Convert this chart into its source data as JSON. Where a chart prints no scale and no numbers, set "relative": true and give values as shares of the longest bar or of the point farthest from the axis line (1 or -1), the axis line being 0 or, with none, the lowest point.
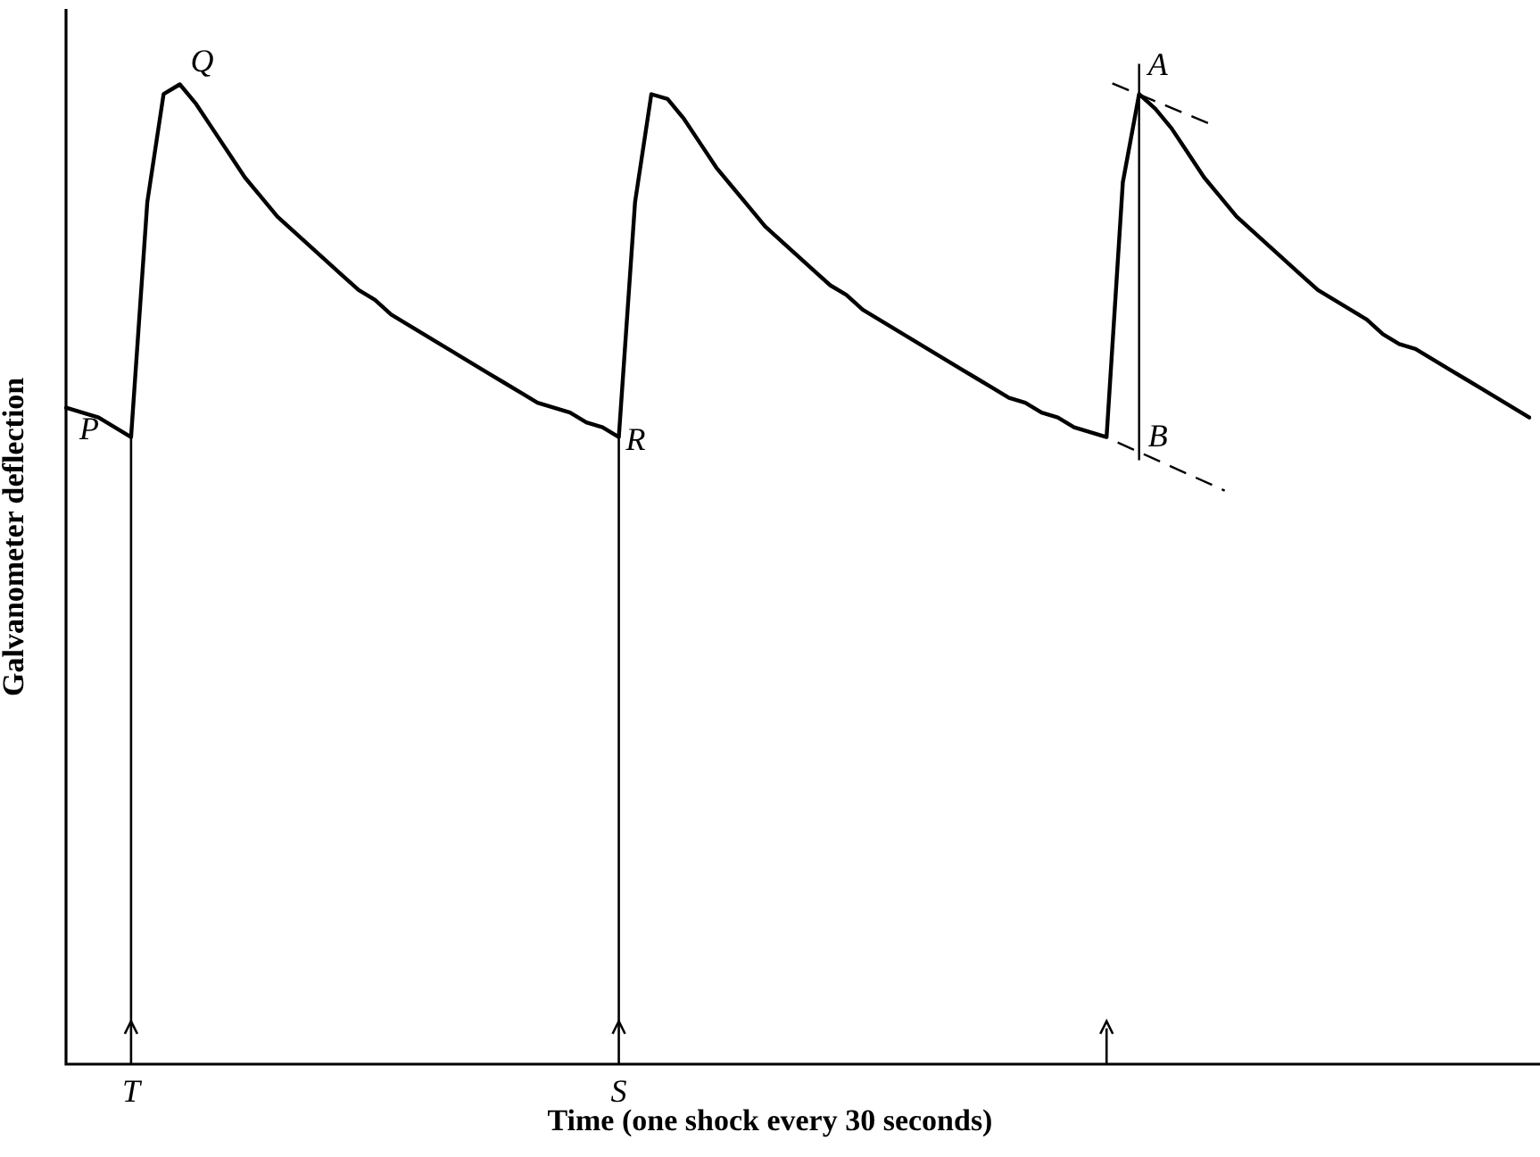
{
  "chart_data": {
    "type": "line",
    "relative": true,
    "xlabel": "Time (one shock every 30 seconds)",
    "ylabel": "Galvanometer deflection",
    "categories": [
      null,
      null,
      null,
      null,
      null,
      null,
      null,
      null,
      null,
      null,
      null,
      null,
      null,
      null,
      null,
      null,
      null,
      null,
      null,
      null,
      null,
      null,
      null,
      null,
      null,
      null,
      null,
      null,
      null,
      null,
      null,
      null,
      null,
      null,
      null,
      null,
      null,
      null,
      null,
      null,
      null,
      null,
      null,
      null,
      null,
      null,
      null,
      null,
      null,
      null,
      null,
      null,
      null,
      null,
      null,
      null,
      null,
      null,
      null,
      null,
      null,
      null,
      null,
      null,
      null,
      null,
      null,
      null,
      null,
      null,
      null,
      null,
      null,
      null,
      null,
      null,
      null,
      null,
      null,
      null,
      null,
      null,
      null,
      null,
      null,
      null,
      null,
      null,
      null,
      null,
      null
    ],
    "series": [
      {
        "color": "#000000",
        "values": [
          0.67,
          0.665,
          0.66,
          0.65,
          0.64,
          0.88,
          0.99,
          1.0,
          0.98,
          0.955,
          0.93,
          0.905,
          0.885,
          0.865,
          0.85,
          0.835,
          0.82,
          0.805,
          0.79,
          0.78,
          0.765,
          0.755,
          0.745,
          0.735,
          0.725,
          0.715,
          0.705,
          0.695,
          0.685,
          0.675,
          0.67,
          0.665,
          0.655,
          0.65,
          0.64,
          0.88,
          0.99,
          0.985,
          0.965,
          0.94,
          0.915,
          0.895,
          0.875,
          0.855,
          0.84,
          0.825,
          0.81,
          0.795,
          0.785,
          0.77,
          0.76,
          0.75,
          0.74,
          0.73,
          0.72,
          0.71,
          0.7,
          0.69,
          0.68,
          0.675,
          0.665,
          0.66,
          0.65,
          0.645,
          0.64,
          0.9,
          0.99,
          0.975,
          0.955,
          0.93,
          0.905,
          0.885,
          0.865,
          0.85,
          0.835,
          0.82,
          0.805,
          0.79,
          0.78,
          0.77,
          0.76,
          0.745,
          0.735,
          0.73,
          0.72,
          0.71,
          0.7,
          0.69,
          0.68,
          0.67,
          0.66
        ]
      }
    ],
    "annotations": [
      "P",
      "Q",
      "R",
      "A",
      "B",
      "T",
      "S"
    ]
  }
}
